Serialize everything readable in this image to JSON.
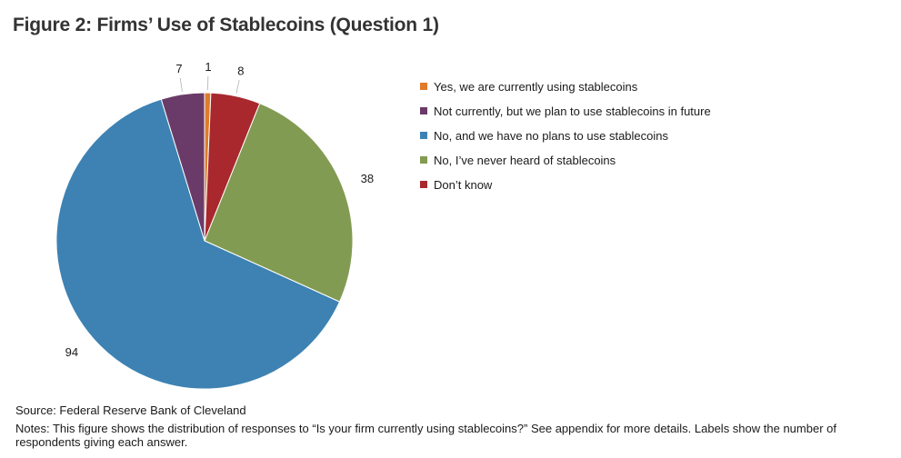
{
  "title": "Figure 2: Firms’ Use of Stablecoins (Question 1)",
  "source": "Source: Federal Reserve Bank of Cleveland",
  "notes": "Notes: This figure shows the distribution of responses to “Is your firm currently using stablecoins?” See appendix for more details. Labels show the number of respondents giving each answer.",
  "chart_data": {
    "type": "pie",
    "start": "12 o'clock, clockwise",
    "slices": [
      {
        "label": "Yes, we are currently using stablecoins",
        "value": 1,
        "color": "#e07b2a"
      },
      {
        "label": "Don’t know",
        "value": 8,
        "color": "#a8282e"
      },
      {
        "label": "No, I’ve never heard of stablecoins",
        "value": 38,
        "color": "#829b52"
      },
      {
        "label": "No, and we have no plans to use stablecoins",
        "value": 94,
        "color": "#3d82b3"
      },
      {
        "label": "Not currently, but we plan to use stablecoins in future",
        "value": 7,
        "color": "#6a3b68"
      }
    ],
    "legend": {
      "placement": "right",
      "items": [
        {
          "label": "Yes, we are currently using stablecoins",
          "color": "#e07b2a"
        },
        {
          "label": "Not currently, but we plan to use stablecoins in future",
          "color": "#6a3b68"
        },
        {
          "label": "No, and we have no plans to use stablecoins",
          "color": "#3d82b3"
        },
        {
          "label": "No, I’ve never heard of stablecoins",
          "color": "#829b52"
        },
        {
          "label": "Don’t know",
          "color": "#a8282e"
        }
      ]
    }
  }
}
